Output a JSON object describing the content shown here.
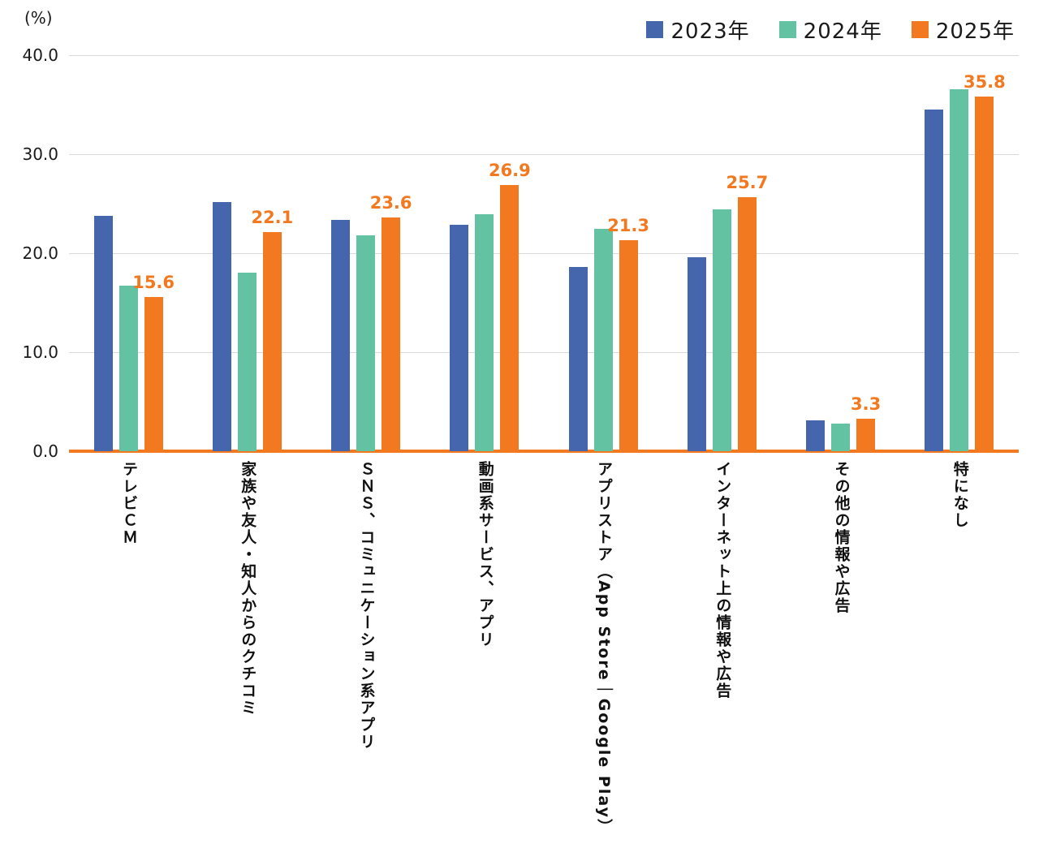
{
  "chart_data": {
    "type": "bar",
    "title": "",
    "unit_label": "(%)",
    "xlabel": "",
    "ylabel": "(%)",
    "ylim": [
      0,
      40
    ],
    "yticks": [
      "0.0",
      "10.0",
      "20.0",
      "30.0",
      "40.0"
    ],
    "grid": true,
    "legend_position": "top-right",
    "axis_line_color": "#f2791f",
    "gridline_color": "#d9d9d9",
    "data_label_color": "#f2791f",
    "categories": [
      "テレビＣＭ",
      "家族や友人・知人からのクチコミ",
      "ＳＮＳ、コミュニケーション系アプリ",
      "動画系サービス、アプリ",
      "アプリストア（App Store｜Google Play）",
      "インターネット上の情報や広告",
      "その他の情報や広告",
      "特になし"
    ],
    "series": [
      {
        "name": "2023年",
        "color": "#4565ad",
        "values": [
          23.8,
          25.2,
          23.4,
          22.9,
          18.6,
          19.6,
          3.1,
          34.5
        ],
        "data_labels": false
      },
      {
        "name": "2024年",
        "color": "#63c2a1",
        "values": [
          16.7,
          18.0,
          21.8,
          23.9,
          22.5,
          24.4,
          2.8,
          36.6
        ],
        "data_labels": false
      },
      {
        "name": "2025年",
        "color": "#f2791f",
        "values": [
          15.6,
          22.1,
          23.6,
          26.9,
          21.3,
          25.7,
          3.3,
          35.8
        ],
        "data_labels": true
      }
    ]
  }
}
